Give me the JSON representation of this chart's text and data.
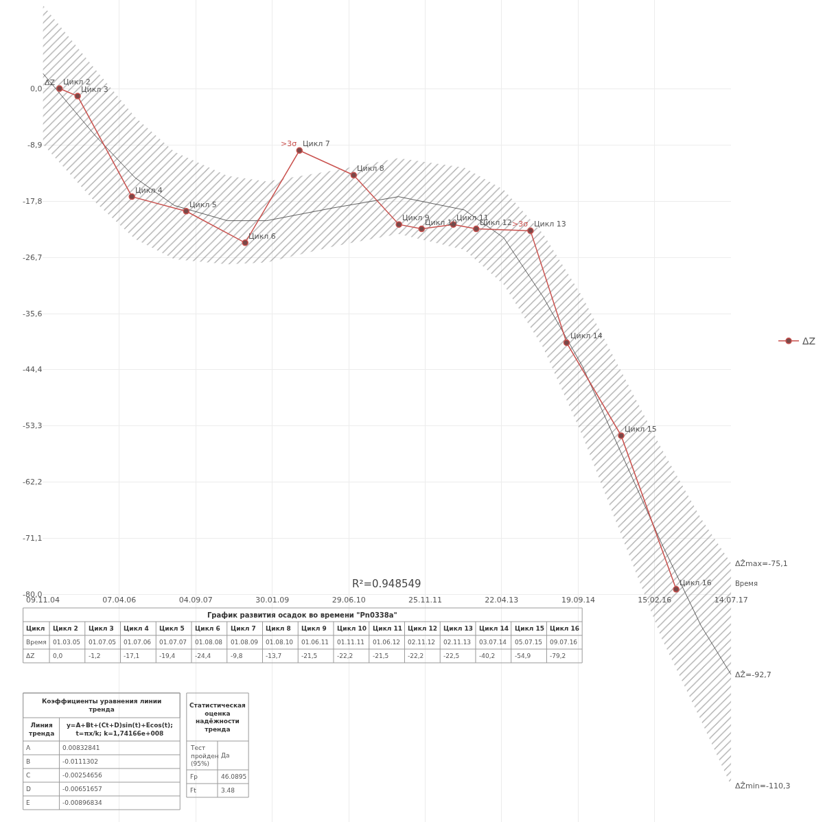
{
  "chart_data": {
    "type": "line",
    "title": "График развития осадок во времени \"Pn0338a\"",
    "xlabel": "Время",
    "xlim": [
      "2004-11-09",
      "2017-07-14"
    ],
    "xticks": [
      {
        "value": "2004-11-09",
        "label": "09.11.04"
      },
      {
        "value": "2006-04-07",
        "label": "07.04.06"
      },
      {
        "value": "2007-09-04",
        "label": "04.09.07"
      },
      {
        "value": "2009-01-30",
        "label": "30.01.09"
      },
      {
        "value": "2010-06-29",
        "label": "29.06.10"
      },
      {
        "value": "2011-11-25",
        "label": "25.11.11"
      },
      {
        "value": "2013-04-22",
        "label": "22.04.13"
      },
      {
        "value": "2014-09-19",
        "label": "19.09.14"
      },
      {
        "value": "2016-02-15",
        "label": "15.02.16"
      },
      {
        "value": "2017-07-14",
        "label": "14.07.17"
      }
    ],
    "ylim": [
      -116,
      14
    ],
    "yticks": [
      {
        "value": 0,
        "label": "0,0"
      },
      {
        "value": -8.9,
        "label": "-8,9"
      },
      {
        "value": -17.8,
        "label": "-17,8"
      },
      {
        "value": -26.7,
        "label": "-26,7"
      },
      {
        "value": -35.6,
        "label": "-35,6"
      },
      {
        "value": -44.4,
        "label": "-44,4"
      },
      {
        "value": -53.3,
        "label": "-53,3"
      },
      {
        "value": -62.2,
        "label": "-62,2"
      },
      {
        "value": -71.1,
        "label": "-71,1"
      },
      {
        "value": -80,
        "label": "-80,0"
      }
    ],
    "x": [
      "2005-03-01",
      "2005-07-01",
      "2006-07-01",
      "2007-07-01",
      "2008-08-01",
      "2009-08-01",
      "2010-08-01",
      "2011-06-01",
      "2011-11-01",
      "2012-06-01",
      "2012-11-02",
      "2013-11-02",
      "2014-07-03",
      "2015-07-05",
      "2016-07-09"
    ],
    "series": [
      {
        "type": "line",
        "x": [
          "2004-11-09",
          "2005-10-29",
          "2006-07-22",
          "2007-04-13",
          "2008-04-03",
          "2008-12-24",
          "2010-03-11",
          "2011-05-29",
          "2012-08-14",
          "2013-05-06",
          "2014-01-27",
          "2014-10-19",
          "2015-07-12",
          "2016-04-03",
          "2016-12-24",
          "2017-07-14"
        ],
        "color": "#4d4d4d",
        "marker": "none",
        "values": [
          2.4,
          -7.5,
          -14.1,
          -18.5,
          -20.9,
          -20.9,
          -18.9,
          -17.1,
          -19.2,
          -23.6,
          -33,
          -44,
          -58,
          -72,
          -85,
          -92.7
        ],
        "upper": [
          13.2,
          3,
          -4.5,
          -10,
          -13.8,
          -14.7,
          -13,
          -11,
          -12.5,
          -16,
          -23,
          -33,
          -45,
          -57,
          -68,
          -75.1
        ],
        "lower": [
          -8.8,
          -18,
          -23.8,
          -27,
          -27.8,
          -27.5,
          -25,
          -23,
          -25.5,
          -31,
          -41,
          -55,
          -71,
          -87,
          -100,
          -110.3
        ]
      },
      {
        "name": "ΔZ",
        "color": "#c9504d",
        "marker": "circle",
        "values": [
          0.0,
          -1.2,
          -17.1,
          -19.4,
          -24.4,
          -9.8,
          -13.7,
          -21.5,
          -22.2,
          -21.5,
          -22.2,
          -22.5,
          -40.2,
          -54.9,
          -79.2
        ]
      }
    ],
    "grid": true,
    "legend": "right",
    "line_style": "solid",
    "annotations": [
      {
        "text": "Цикл 2",
        "x": "2005-03-01",
        "y": 0.0
      },
      {
        "text": "Цикл 3",
        "x": "2005-07-01",
        "y": -1.2
      },
      {
        "text": "Цикл 4",
        "x": "2006-07-01",
        "y": -17.1
      },
      {
        "text": "Цикл 5",
        "x": "2007-07-01",
        "y": -19.4
      },
      {
        "text": "Цикл 6",
        "x": "2008-08-01",
        "y": -24.4
      },
      {
        "text": "Цикл 7",
        "x": "2009-08-01",
        "y": -9.8
      },
      {
        "text": "Цикл 8",
        "x": "2010-08-01",
        "y": -13.7
      },
      {
        "text": "Цикл 9",
        "x": "2011-06-01",
        "y": -21.5
      },
      {
        "text": "Цикл 10",
        "x": "2011-11-01",
        "y": -22.2
      },
      {
        "text": "Цикл 11",
        "x": "2012-06-01",
        "y": -21.5
      },
      {
        "text": "Цикл 12",
        "x": "2012-11-02",
        "y": -22.2
      },
      {
        "text": "Цикл 13",
        "x": "2013-11-02",
        "y": -22.5
      },
      {
        "text": "Цикл 14",
        "x": "2014-07-03",
        "y": -40.2
      },
      {
        "text": "Цикл 15",
        "x": "2015-07-05",
        "y": -54.9
      },
      {
        "text": "Цикл 16",
        "x": "2016-07-09",
        "y": -79.2
      },
      {
        "text": ">3σ",
        "x": "2009-08-01",
        "y": -9.8
      },
      {
        "text": ">3σ",
        "x": "2013-11-02",
        "y": -22.5
      },
      {
        "text": "ΔẐmax=-75,1",
        "x": "2017-07-14",
        "y": -75.1
      },
      {
        "text": "ΔẐ=-92,7",
        "x": "2017-07-14",
        "y": -92.7
      },
      {
        "text": "ΔẐmin=-110,3",
        "x": "2017-07-14",
        "y": -110.3
      },
      "R²=0.948549",
      "Цикл",
      "01.03.05",
      "01.07.05",
      "01.07.06",
      "01.07.07",
      "01.08.08",
      "01.08.09",
      "01.08.10",
      "01.06.11",
      "01.11.11",
      "01.06.12",
      "02.11.12",
      "02.11.13",
      "03.07.14",
      "05.07.15",
      "09.07.16",
      "0,0",
      "-1,2",
      "-17,1",
      "-19,4",
      "-24,4",
      "-9,8",
      "-13,7",
      "-21,5",
      "-22,2",
      "-21,5",
      "-22,2",
      "-22,5",
      "-40,2",
      "-54,9",
      "-79,2",
      "Коэффициенты уравнения линии тренда",
      "Линия тренда",
      "y=A+Bt+(Ct+D)sin(t)+Ecos(t); t=πx/k; k=1,74166e+008",
      "A",
      "0.00832841",
      "B",
      "-0.0111302",
      "C",
      "-0.00254656",
      "D",
      "-0.00651657",
      "E",
      "-0.00896834",
      "Статистическая оценка надёжности тренда",
      "Тест пройден (95%)",
      "Да",
      "Fp",
      "46.0895",
      "Ft",
      "3.48"
    ]
  }
}
